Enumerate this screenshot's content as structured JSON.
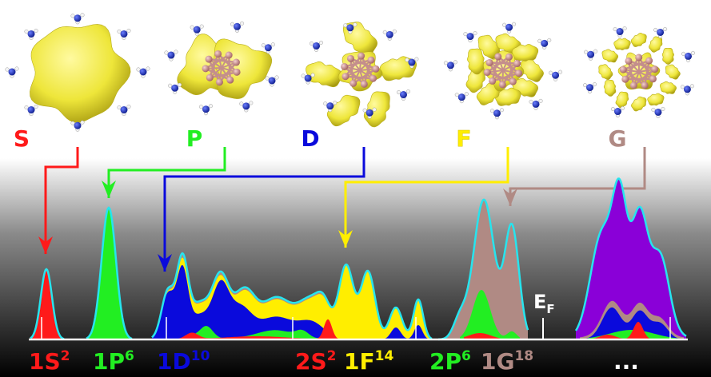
{
  "orbitals": [
    {
      "letter": "S",
      "color": "#ff1a1a"
    },
    {
      "letter": "P",
      "color": "#22ee22"
    },
    {
      "letter": "D",
      "color": "#0a0adc"
    },
    {
      "letter": "F",
      "color": "#ffee00"
    },
    {
      "letter": "G",
      "color": "#b08a84"
    }
  ],
  "shells": [
    {
      "name": "1S",
      "occupancy": "2",
      "color": "#ff1a1a"
    },
    {
      "name": "1P",
      "occupancy": "6",
      "color": "#22ee22"
    },
    {
      "name": "1D",
      "occupancy": "10",
      "color": "#0a0adc"
    },
    {
      "name": "2S",
      "occupancy": "2",
      "color": "#ff1a1a"
    },
    {
      "name": "1F",
      "occupancy": "14",
      "color": "#ffee00"
    },
    {
      "name": "2P",
      "occupancy": "6",
      "color": "#22ee22"
    },
    {
      "name": "1G",
      "occupancy": "18",
      "color": "#b08a84"
    }
  ],
  "fermi_label": {
    "main": "E",
    "sub": "F"
  },
  "ellipsis": "...",
  "colors": {
    "cloud": "#f2ef3a",
    "cluster_atom": "#d9a0a0",
    "ligand_atom": "#1b2fd6",
    "envelope": "#27e4ee",
    "violet": "#8a00d8",
    "axis": "#ffffff"
  }
}
